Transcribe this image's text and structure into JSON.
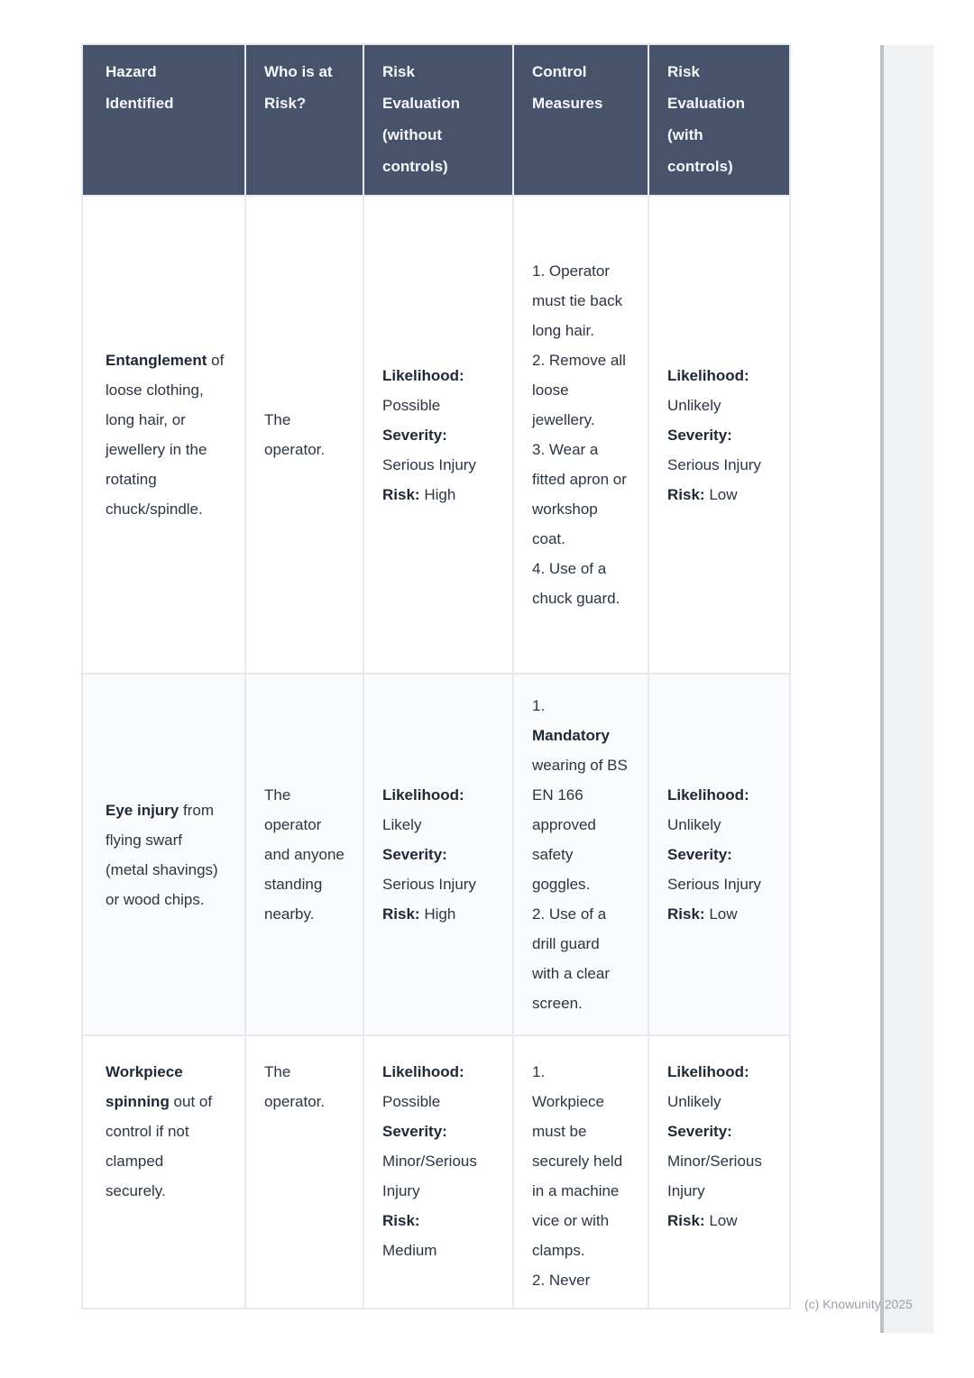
{
  "watermark": "(c) Knowunity 2025",
  "table": {
    "headers": [
      "Hazard Identified",
      "Who is at Risk?",
      "Risk Evaluation (without controls)",
      "Control Measures",
      "Risk Evaluation (with controls)"
    ],
    "rows": [
      {
        "hazard_bold": "Entanglement",
        "hazard_rest": " of loose clothing, long hair, or jewellery in the rotating chuck/spindle.",
        "who": "The operator.",
        "without": {
          "likelihood_label": "Likelihood:",
          "likelihood": "Possible",
          "severity_label": "Severity:",
          "severity": "Serious Injury",
          "risk_label": "Risk:",
          "risk": "High"
        },
        "controls": [
          {
            "text": "1. Operator must tie back long hair."
          },
          {
            "text": "2. Remove all loose jewellery."
          },
          {
            "text": "3. Wear a fitted apron or workshop coat."
          },
          {
            "text": "4. Use of a chuck guard."
          }
        ],
        "with": {
          "likelihood_label": "Likelihood:",
          "likelihood": "Unlikely",
          "severity_label": "Severity:",
          "severity": "Serious Injury",
          "risk_label": "Risk:",
          "risk": "Low"
        }
      },
      {
        "hazard_bold": "Eye injury",
        "hazard_rest": " from flying swarf (metal shavings) or wood chips.",
        "who": "The operator and anyone standing nearby.",
        "without": {
          "likelihood_label": "Likelihood:",
          "likelihood": "Likely",
          "severity_label": "Severity:",
          "severity": "Serious Injury",
          "risk_label": "Risk:",
          "risk": "High"
        },
        "controls": [
          {
            "num": "1.",
            "bold": "Mandatory",
            "text": " wearing of BS EN 166 approved safety goggles."
          },
          {
            "text": "2. Use of a drill guard with a clear screen."
          }
        ],
        "with": {
          "likelihood_label": "Likelihood:",
          "likelihood": "Unlikely",
          "severity_label": "Severity:",
          "severity": "Serious Injury",
          "risk_label": "Risk:",
          "risk": "Low"
        }
      },
      {
        "hazard_bold": "Workpiece spinning",
        "hazard_rest": " out of control if not clamped securely.",
        "who": "The operator.",
        "without": {
          "likelihood_label": "Likelihood:",
          "likelihood": "Possible",
          "severity_label": "Severity:",
          "severity": "Minor/Serious Injury",
          "risk_label": "Risk:",
          "risk": "Medium"
        },
        "controls": [
          {
            "num": "1.",
            "text": "Workpiece must be securely held in a machine vice or with clamps."
          },
          {
            "text": "2. Never"
          }
        ],
        "with": {
          "likelihood_label": "Likelihood:",
          "likelihood": "Unlikely",
          "severity_label": "Severity:",
          "severity": "Minor/Serious Injury",
          "risk_label": "Risk:",
          "risk": "Low"
        }
      }
    ]
  }
}
